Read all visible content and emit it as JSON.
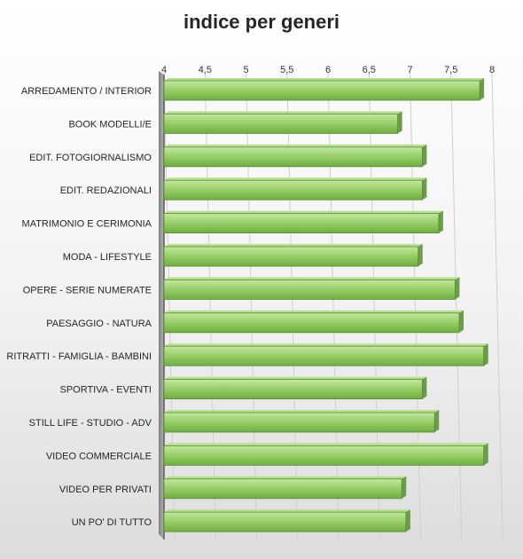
{
  "chart_data": {
    "type": "bar",
    "orientation": "horizontal",
    "title": "indice per generi",
    "xlabel": "",
    "ylabel": "",
    "xlim": [
      4,
      8
    ],
    "ticks": [
      "4",
      "4,5",
      "5",
      "5,5",
      "6",
      "6,5",
      "7",
      "7,5",
      "8"
    ],
    "grid": true,
    "legend": "none",
    "categories": [
      "ARREDAMENTO / INTERIOR",
      "BOOK MODELLI/E",
      "EDIT. FOTOGIORNALISMO",
      "EDIT. REDAZIONALI",
      "MATRIMONIO E CERIMONIA",
      "MODA - LIFESTYLE",
      "OPERE - SERIE NUMERATE",
      "PAESAGGIO - NATURA",
      "RITRATTI - FAMIGLIA - BAMBINI",
      "SPORTIVA - EVENTI",
      "STILL LIFE - STUDIO - ADV",
      "VIDEO COMMERCIALE",
      "VIDEO PER PRIVATI",
      "UN PO' DI TUTTO"
    ],
    "values": [
      7.85,
      6.85,
      7.15,
      7.15,
      7.35,
      7.1,
      7.55,
      7.6,
      7.9,
      7.15,
      7.3,
      7.9,
      6.9,
      6.95
    ],
    "bar_color": "#8cc759",
    "bar_highlight": "#b6e08e",
    "bar_edge": "#5a8a35"
  }
}
